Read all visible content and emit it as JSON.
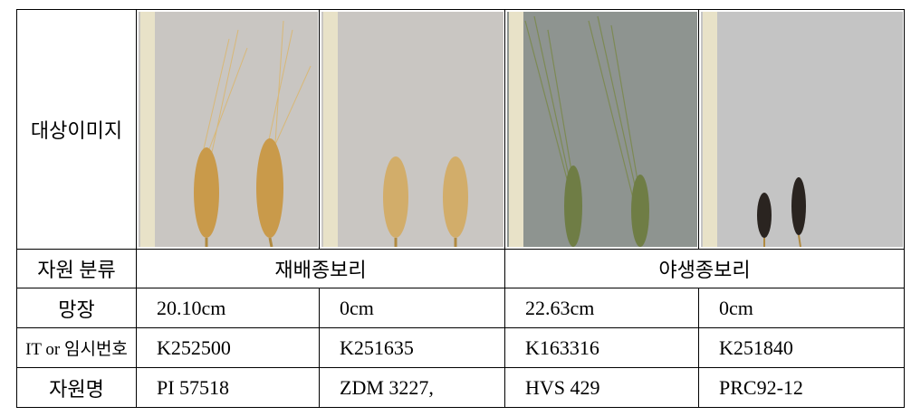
{
  "table": {
    "image_row_label": "대상이미지",
    "rows": [
      [
        "자원 분류",
        "재배종보리",
        "야생종보리"
      ],
      [
        "망장",
        "20.10cm",
        "0cm",
        "22.63cm",
        "0cm"
      ],
      [
        "IT or 임시번호",
        "K252500",
        "K251635",
        "K163316",
        "K251840"
      ],
      [
        "자원명",
        "PI 57518",
        "ZDM 3227,",
        "HVS 429",
        "PRC92-12"
      ]
    ]
  }
}
